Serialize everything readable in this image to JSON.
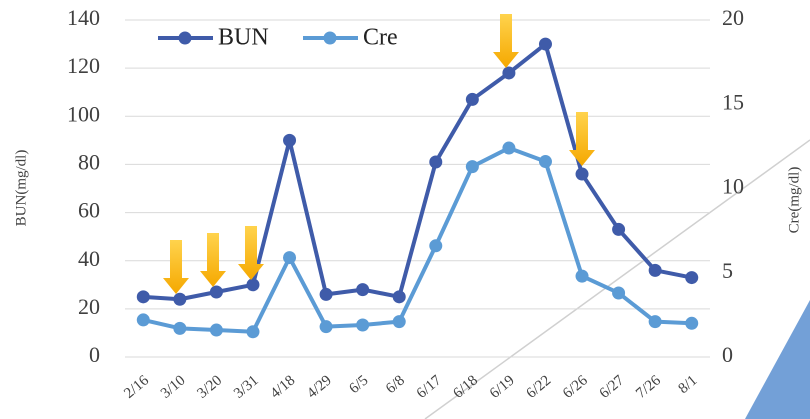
{
  "chart_data": {
    "type": "line",
    "categories": [
      "2/16",
      "3/10",
      "3/20",
      "3/31",
      "4/18",
      "4/29",
      "6/5",
      "6/8",
      "6/17",
      "6/18",
      "6/19",
      "6/22",
      "6/26",
      "6/27",
      "7/26",
      "8/1"
    ],
    "series": [
      {
        "name": "BUN",
        "color": "#3f5ba9",
        "values": [
          25,
          24,
          27,
          30,
          90,
          26,
          28,
          25,
          81,
          107,
          118,
          130,
          76,
          53,
          36,
          33
        ]
      },
      {
        "name": "Cre",
        "color": "#5b9bd5",
        "axis": "y2",
        "values": [
          2.2,
          1.7,
          1.6,
          1.5,
          5.9,
          1.8,
          1.9,
          2.1,
          6.6,
          11.3,
          12.4,
          11.6,
          4.8,
          3.8,
          2.1,
          2.0
        ]
      }
    ],
    "y_label": "BUN(mg/dl)",
    "y2_label": "Cre(mg/dl)",
    "ylim": [
      0,
      140
    ],
    "yticks": [
      0,
      20,
      40,
      60,
      80,
      100,
      120,
      140
    ],
    "y2lim": [
      0,
      20
    ],
    "y2ticks": [
      0,
      5,
      10,
      15,
      20
    ],
    "grid": true,
    "legend": "top-left"
  }
}
